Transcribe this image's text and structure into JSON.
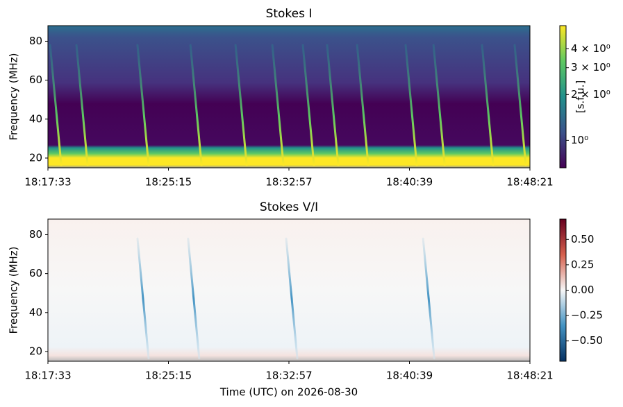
{
  "chart_data": [
    {
      "type": "spectrogram",
      "title": "Stokes I",
      "ylabel": "Frequency (MHz)",
      "xlim": [
        65853,
        67701
      ],
      "xticks": [
        {
          "value": 65853,
          "label": "18:17:33"
        },
        {
          "value": 66315,
          "label": "18:25:15"
        },
        {
          "value": 66777,
          "label": "18:32:57"
        },
        {
          "value": 67239,
          "label": "18:40:39"
        },
        {
          "value": 67701,
          "label": "18:48:21"
        }
      ],
      "ylim": [
        15,
        88
      ],
      "yticks": [
        20,
        40,
        60,
        80
      ],
      "colorbar": {
        "scale": "log",
        "colormap": "viridis",
        "clim": [
          0.66,
          5.67
        ],
        "label": "[s.f.u.]",
        "ticks": [
          {
            "value": 1,
            "label": "10⁰"
          },
          {
            "value": 2,
            "label": "2 × 10⁰"
          },
          {
            "value": 3,
            "label": "3 × 10⁰"
          },
          {
            "value": 4,
            "label": "4 × 10⁰"
          }
        ]
      },
      "bursts": [
        65904,
        66005,
        66239,
        66442,
        66615,
        66756,
        66873,
        66966,
        67081,
        67267,
        67374,
        67560,
        67685
      ]
    },
    {
      "type": "spectrogram",
      "title": "Stokes V/I",
      "ylabel": "Frequency (MHz)",
      "xlabel": "Time (UTC) on 2026-08-30",
      "xlim": [
        65853,
        67701
      ],
      "xticks": [
        {
          "value": 65853,
          "label": "18:17:33"
        },
        {
          "value": 66315,
          "label": "18:25:15"
        },
        {
          "value": 66777,
          "label": "18:32:57"
        },
        {
          "value": 67239,
          "label": "18:40:39"
        },
        {
          "value": 67701,
          "label": "18:48:21"
        }
      ],
      "ylim": [
        15,
        88
      ],
      "yticks": [
        20,
        40,
        60,
        80
      ],
      "colorbar": {
        "scale": "linear",
        "colormap": "RdBu_r",
        "clim": [
          -0.7,
          0.7
        ],
        "ticks": [
          {
            "value": 0.5,
            "label": "0.50"
          },
          {
            "value": 0.25,
            "label": "0.25"
          },
          {
            "value": 0,
            "label": "0.00"
          },
          {
            "value": -0.25,
            "label": "−0.25"
          },
          {
            "value": -0.5,
            "label": "−0.50"
          }
        ]
      },
      "bursts": [
        66239,
        66433,
        66809,
        67334
      ]
    }
  ]
}
